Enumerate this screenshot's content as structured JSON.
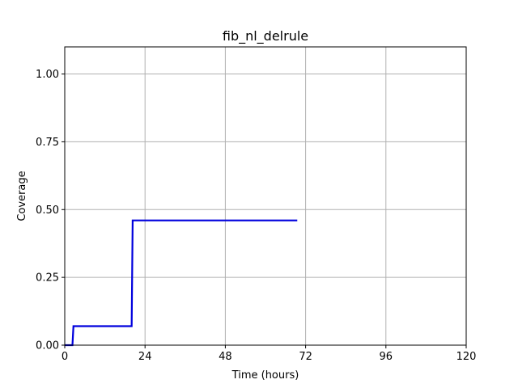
{
  "chart_data": {
    "type": "line",
    "title": "fib_nl_delrule",
    "xlabel": "Time (hours)",
    "ylabel": "Coverage",
    "xlim": [
      0,
      120
    ],
    "ylim": [
      0,
      1.1
    ],
    "xticks": [
      0,
      24,
      48,
      72,
      96,
      120
    ],
    "xtick_labels": [
      "0",
      "24",
      "48",
      "72",
      "96",
      "120"
    ],
    "yticks": [
      0.0,
      0.25,
      0.5,
      0.75,
      1.0
    ],
    "ytick_labels": [
      "0.00",
      "0.25",
      "0.50",
      "0.75",
      "1.00"
    ],
    "grid": true,
    "legend": "none",
    "series": [
      {
        "color": "#0000dd",
        "points": [
          [
            0,
            0
          ],
          [
            2.3,
            0
          ],
          [
            2.6,
            0.07
          ],
          [
            20,
            0.07
          ],
          [
            20.3,
            0.46
          ],
          [
            69.5,
            0.46
          ]
        ]
      }
    ]
  },
  "colors": {
    "grid": "#b0b0b0",
    "axes": "#000000",
    "background": "#ffffff"
  }
}
